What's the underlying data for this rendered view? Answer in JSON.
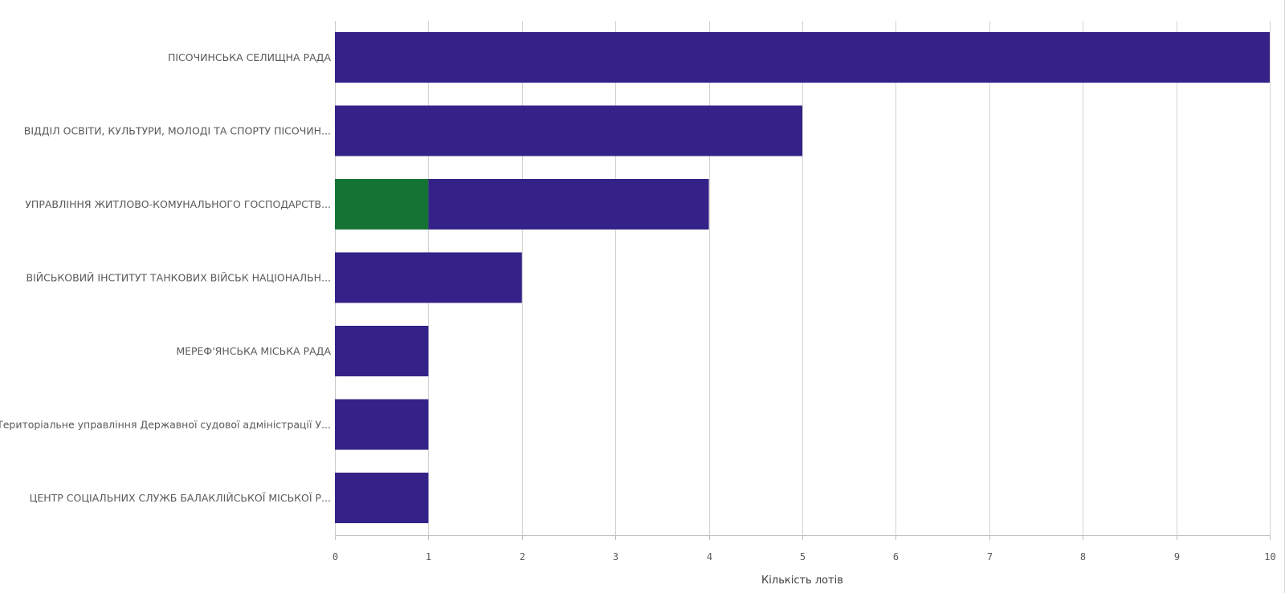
{
  "chart_data": {
    "type": "bar",
    "orientation": "horizontal",
    "stacked": true,
    "categories": [
      "ПІСОЧИНСЬКА СЕЛИЩНА РАДА",
      "ВІДДІЛ ОСВІТИ, КУЛЬТУРИ, МОЛОДІ ТА СПОРТУ ПІСОЧИН...",
      "УПРАВЛІННЯ ЖИТЛОВО-КОМУНАЛЬНОГО ГОСПОДАРСТВ...",
      "ВІЙСЬКОВИЙ ІНСТИТУТ ТАНКОВИХ ВІЙСЬК НАЦІОНАЛЬН...",
      "МЕРЕФ'ЯНСЬКА МІСЬКА РАДА",
      "Територіальне управління Державної судової адміністрації У...",
      "ЦЕНТР СОЦІАЛЬНИХ СЛУЖБ БАЛАКЛІЙСЬКОЇ МІСЬКОЇ Р..."
    ],
    "series": [
      {
        "color": "#157434",
        "values": [
          0,
          0,
          1,
          0,
          0,
          0,
          0
        ]
      },
      {
        "color": "#352288",
        "values": [
          10,
          5,
          3,
          2,
          1,
          1,
          1
        ]
      }
    ],
    "xlabel": "Кількість лотів",
    "ylabel": "",
    "xlim": [
      0,
      10
    ],
    "xticks": [
      "0",
      "1",
      "2",
      "3",
      "4",
      "5",
      "6",
      "7",
      "8",
      "9",
      "10"
    ],
    "grid": true,
    "legend": "none"
  }
}
